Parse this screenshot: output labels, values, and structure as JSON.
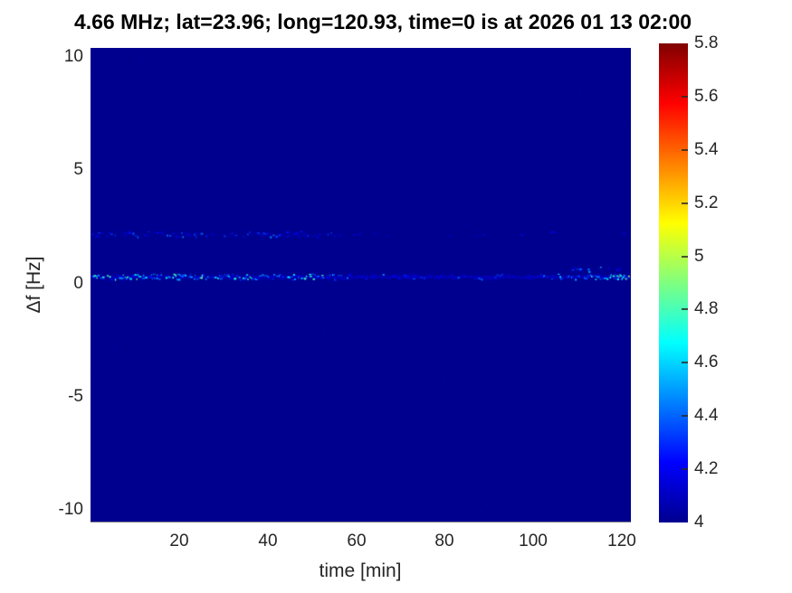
{
  "chart_data": {
    "type": "heatmap",
    "title": "4.66 MHz;  lat=23.96; long=120.93, time=0 is at 2026 01 13 02:00",
    "xlabel": "time [min]",
    "ylabel": "Δf [Hz]",
    "xlim": [
      0,
      122
    ],
    "ylim": [
      -10.5,
      10.4
    ],
    "x_ticks": [
      "20",
      "40",
      "60",
      "80",
      "100",
      "120"
    ],
    "y_ticks": [
      "10",
      "5",
      "0",
      "-5",
      "-10"
    ],
    "grid": false,
    "background_value": 4,
    "background_color": "#00008F",
    "colorbar": {
      "min": 4,
      "max": 5.8,
      "tick_labels_top_to_bottom": [
        "5.8",
        "5.6",
        "5.4",
        "5.2",
        "5",
        "4.8",
        "4.6",
        "4.4",
        "4.2",
        "4"
      ],
      "tick_values_top_to_bottom": [
        5.8,
        5.6,
        5.4,
        5.2,
        5.0,
        4.8,
        4.6,
        4.4,
        4.2,
        4.0
      ],
      "colormap": "jet",
      "stops": [
        {
          "pos": 0.0,
          "color": "#00008F"
        },
        {
          "pos": 0.125,
          "color": "#0000FF"
        },
        {
          "pos": 0.375,
          "color": "#00FFFF"
        },
        {
          "pos": 0.625,
          "color": "#FFFF00"
        },
        {
          "pos": 0.875,
          "color": "#FF0000"
        },
        {
          "pos": 1.0,
          "color": "#800000"
        }
      ]
    },
    "signal_bands": [
      {
        "name": "secondary-doppler-trace",
        "delta_f_hz": 2.2,
        "segments": [
          {
            "time": [
              0,
              48
            ],
            "density": 0.5,
            "value_max": 4.45,
            "bias": 2.0
          },
          {
            "time": [
              48,
              68
            ],
            "density": 0.2,
            "value_max": 4.35,
            "bias": 2.2
          },
          {
            "time": [
              80,
              122
            ],
            "density": 0.05,
            "value_max": 4.3,
            "bias": 2.5
          }
        ]
      },
      {
        "name": "primary-doppler-trace",
        "delta_f_hz": 0.32,
        "baseline": true,
        "segments": [
          {
            "time": [
              0,
              58
            ],
            "density": 0.95,
            "value_max": 4.85,
            "bias": 2.0
          },
          {
            "time": [
              58,
              105
            ],
            "density": 0.55,
            "value_max": 4.45,
            "bias": 2.2
          },
          {
            "time": [
              105,
              113
            ],
            "density": 0.75,
            "value_max": 4.6,
            "bias": 2.0
          },
          {
            "time": [
              113,
              122
            ],
            "density": 1.0,
            "value_max": 5.05,
            "bias": 1.4
          }
        ]
      },
      {
        "name": "elevated-scatter-near-end",
        "delta_f_hz": 0.65,
        "segments": [
          {
            "time": [
              108,
              122
            ],
            "density": 0.25,
            "value_max": 4.55,
            "bias": 2.0
          }
        ]
      }
    ],
    "noise": {
      "dot_count": 800,
      "value_min": 4.0,
      "value_max": 4.12
    }
  }
}
